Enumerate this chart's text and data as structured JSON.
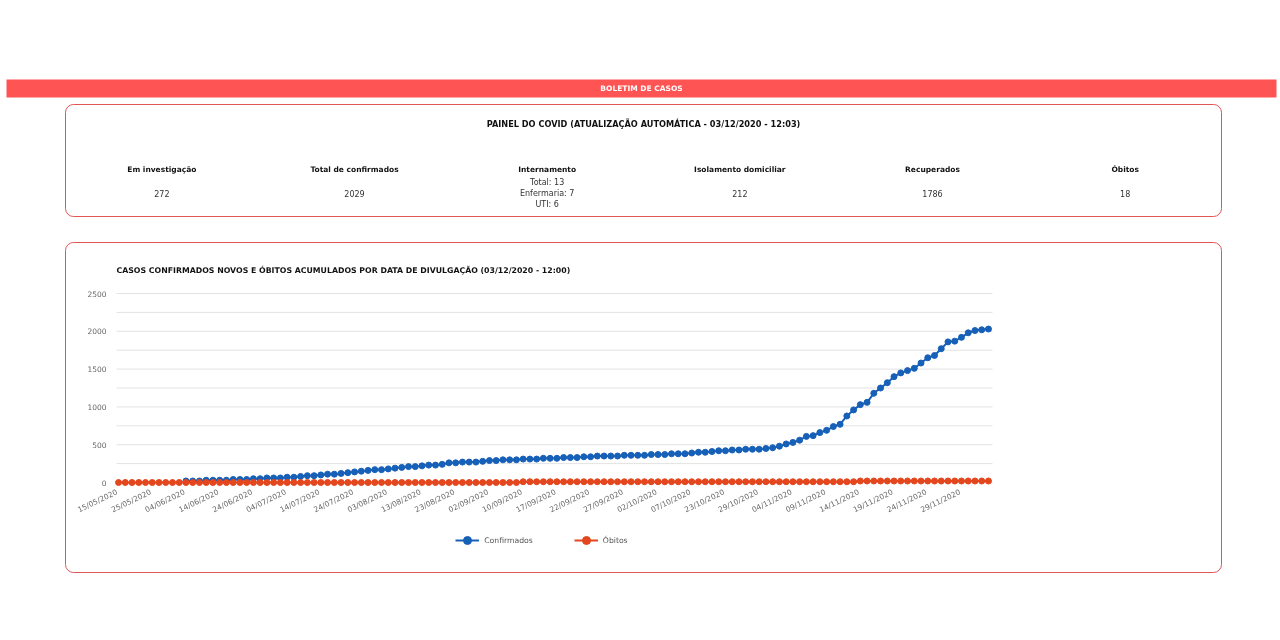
{
  "chart_data": [
    {
      "type": "other",
      "title": "BOLETIM DE CASOS",
      "subtitle": "PAINEL DO COVID (ATUALIZAÇÃO AUTOMÁTICA - 03/12/2020 - 12:03)",
      "annotations": [
        "Em investigação",
        "272",
        "Total de confirmados",
        "2029",
        "Internamento",
        "Total: 13\nEnfermaria: 7\nUTI: 6",
        "Isolamento domiciliar",
        "212",
        "Recuperados",
        "1786",
        "Óbitos",
        "18"
      ]
    },
    {
      "type": "line",
      "title": "CASOS CONFIRMADOS NOVOS E ÓBITOS ACUMULADOS POR DATA DE DIVULGAÇÃO (03/12/2020 - 12:00)",
      "categories": [
        "15/05/2020",
        null,
        null,
        null,
        null,
        "25/05/2020",
        null,
        null,
        null,
        null,
        "04/06/2020",
        null,
        null,
        null,
        null,
        "14/06/2020",
        null,
        null,
        null,
        null,
        "24/06/2020",
        null,
        null,
        null,
        null,
        "04/07/2020",
        null,
        null,
        null,
        null,
        "14/07/2020",
        null,
        null,
        null,
        null,
        "24/07/2020",
        null,
        null,
        null,
        null,
        "03/08/2020",
        null,
        null,
        null,
        null,
        "13/08/2020",
        null,
        null,
        null,
        null,
        "23/08/2020",
        null,
        null,
        null,
        null,
        "02/09/2020",
        null,
        null,
        null,
        null,
        "10/09/2020",
        null,
        null,
        null,
        null,
        "17/09/2020",
        null,
        null,
        null,
        null,
        "22/09/2020",
        null,
        null,
        null,
        null,
        "27/09/2020",
        null,
        null,
        null,
        null,
        "02/10/2020",
        null,
        null,
        null,
        null,
        "07/10/2020",
        null,
        null,
        null,
        null,
        "23/10/2020",
        null,
        null,
        null,
        null,
        "29/10/2020",
        null,
        null,
        null,
        null,
        "04/11/2020",
        null,
        null,
        null,
        null,
        "09/11/2020",
        null,
        null,
        null,
        null,
        "14/11/2020",
        null,
        null,
        null,
        null,
        "19/11/2020",
        null,
        null,
        null,
        null,
        "24/11/2020",
        null,
        null,
        null,
        null,
        "29/11/2020",
        null,
        null,
        null,
        null
      ],
      "series": [
        {
          "name": "Confirmados",
          "color": "#1760b8",
          "values": [
            null,
            null,
            null,
            null,
            null,
            null,
            null,
            null,
            null,
            null,
            20,
            20,
            20,
            30,
            30,
            30,
            30,
            40,
            40,
            40,
            50,
            50,
            60,
            60,
            60,
            70,
            70,
            80,
            90,
            90,
            100,
            110,
            110,
            120,
            130,
            140,
            150,
            160,
            170,
            170,
            180,
            190,
            200,
            210,
            210,
            220,
            230,
            230,
            240,
            260,
            260,
            270,
            270,
            270,
            280,
            290,
            290,
            300,
            300,
            300,
            310,
            310,
            310,
            320,
            320,
            320,
            330,
            330,
            330,
            340,
            340,
            350,
            350,
            350,
            350,
            360,
            360,
            360,
            360,
            370,
            370,
            370,
            380,
            380,
            380,
            390,
            400,
            400,
            410,
            420,
            420,
            430,
            430,
            440,
            440,
            440,
            450,
            460,
            480,
            510,
            530,
            560,
            610,
            620,
            660,
            690,
            740,
            770,
            880,
            960,
            1030,
            1060,
            1180,
            1250,
            1320,
            1400,
            1450,
            1480,
            1510,
            1580,
            1650,
            1680,
            1770,
            1860,
            1870,
            1920,
            1980,
            2010,
            2020,
            2030
          ]
        },
        {
          "name": "Óbitos",
          "color": "#e4461e",
          "values": [
            0,
            0,
            0,
            0,
            0,
            0,
            0,
            0,
            0,
            0,
            0,
            0,
            0,
            0,
            0,
            0,
            0,
            0,
            0,
            0,
            0,
            0,
            0,
            0,
            0,
            0,
            0,
            0,
            0,
            0,
            0,
            0,
            0,
            0,
            0,
            0,
            0,
            0,
            0,
            0,
            0,
            0,
            0,
            0,
            0,
            0,
            0,
            0,
            0,
            0,
            0,
            0,
            0,
            0,
            0,
            0,
            0,
            0,
            0,
            0,
            10,
            10,
            10,
            10,
            10,
            10,
            10,
            10,
            10,
            10,
            10,
            10,
            10,
            10,
            10,
            10,
            10,
            10,
            10,
            10,
            10,
            10,
            10,
            10,
            10,
            10,
            10,
            10,
            10,
            10,
            10,
            10,
            10,
            10,
            10,
            10,
            10,
            10,
            10,
            10,
            10,
            10,
            10,
            10,
            10,
            10,
            10,
            10,
            10,
            10,
            20,
            20,
            20,
            20,
            20,
            20,
            20,
            20,
            20,
            20,
            20,
            20,
            20,
            20,
            20,
            20,
            20,
            20,
            20,
            20
          ]
        }
      ],
      "ylim": [
        0,
        2500
      ],
      "yticks": [
        0,
        {
          "value": 250,
          "label": null
        },
        500,
        {
          "value": 750,
          "label": null
        },
        1000,
        {
          "value": 1250,
          "label": null
        },
        1500,
        {
          "value": 1750,
          "label": null
        },
        2000,
        {
          "value": 2250,
          "label": null
        },
        2500
      ],
      "grid": "y",
      "legend": "bottom",
      "marker": "circle",
      "line_style": "solid"
    }
  ]
}
